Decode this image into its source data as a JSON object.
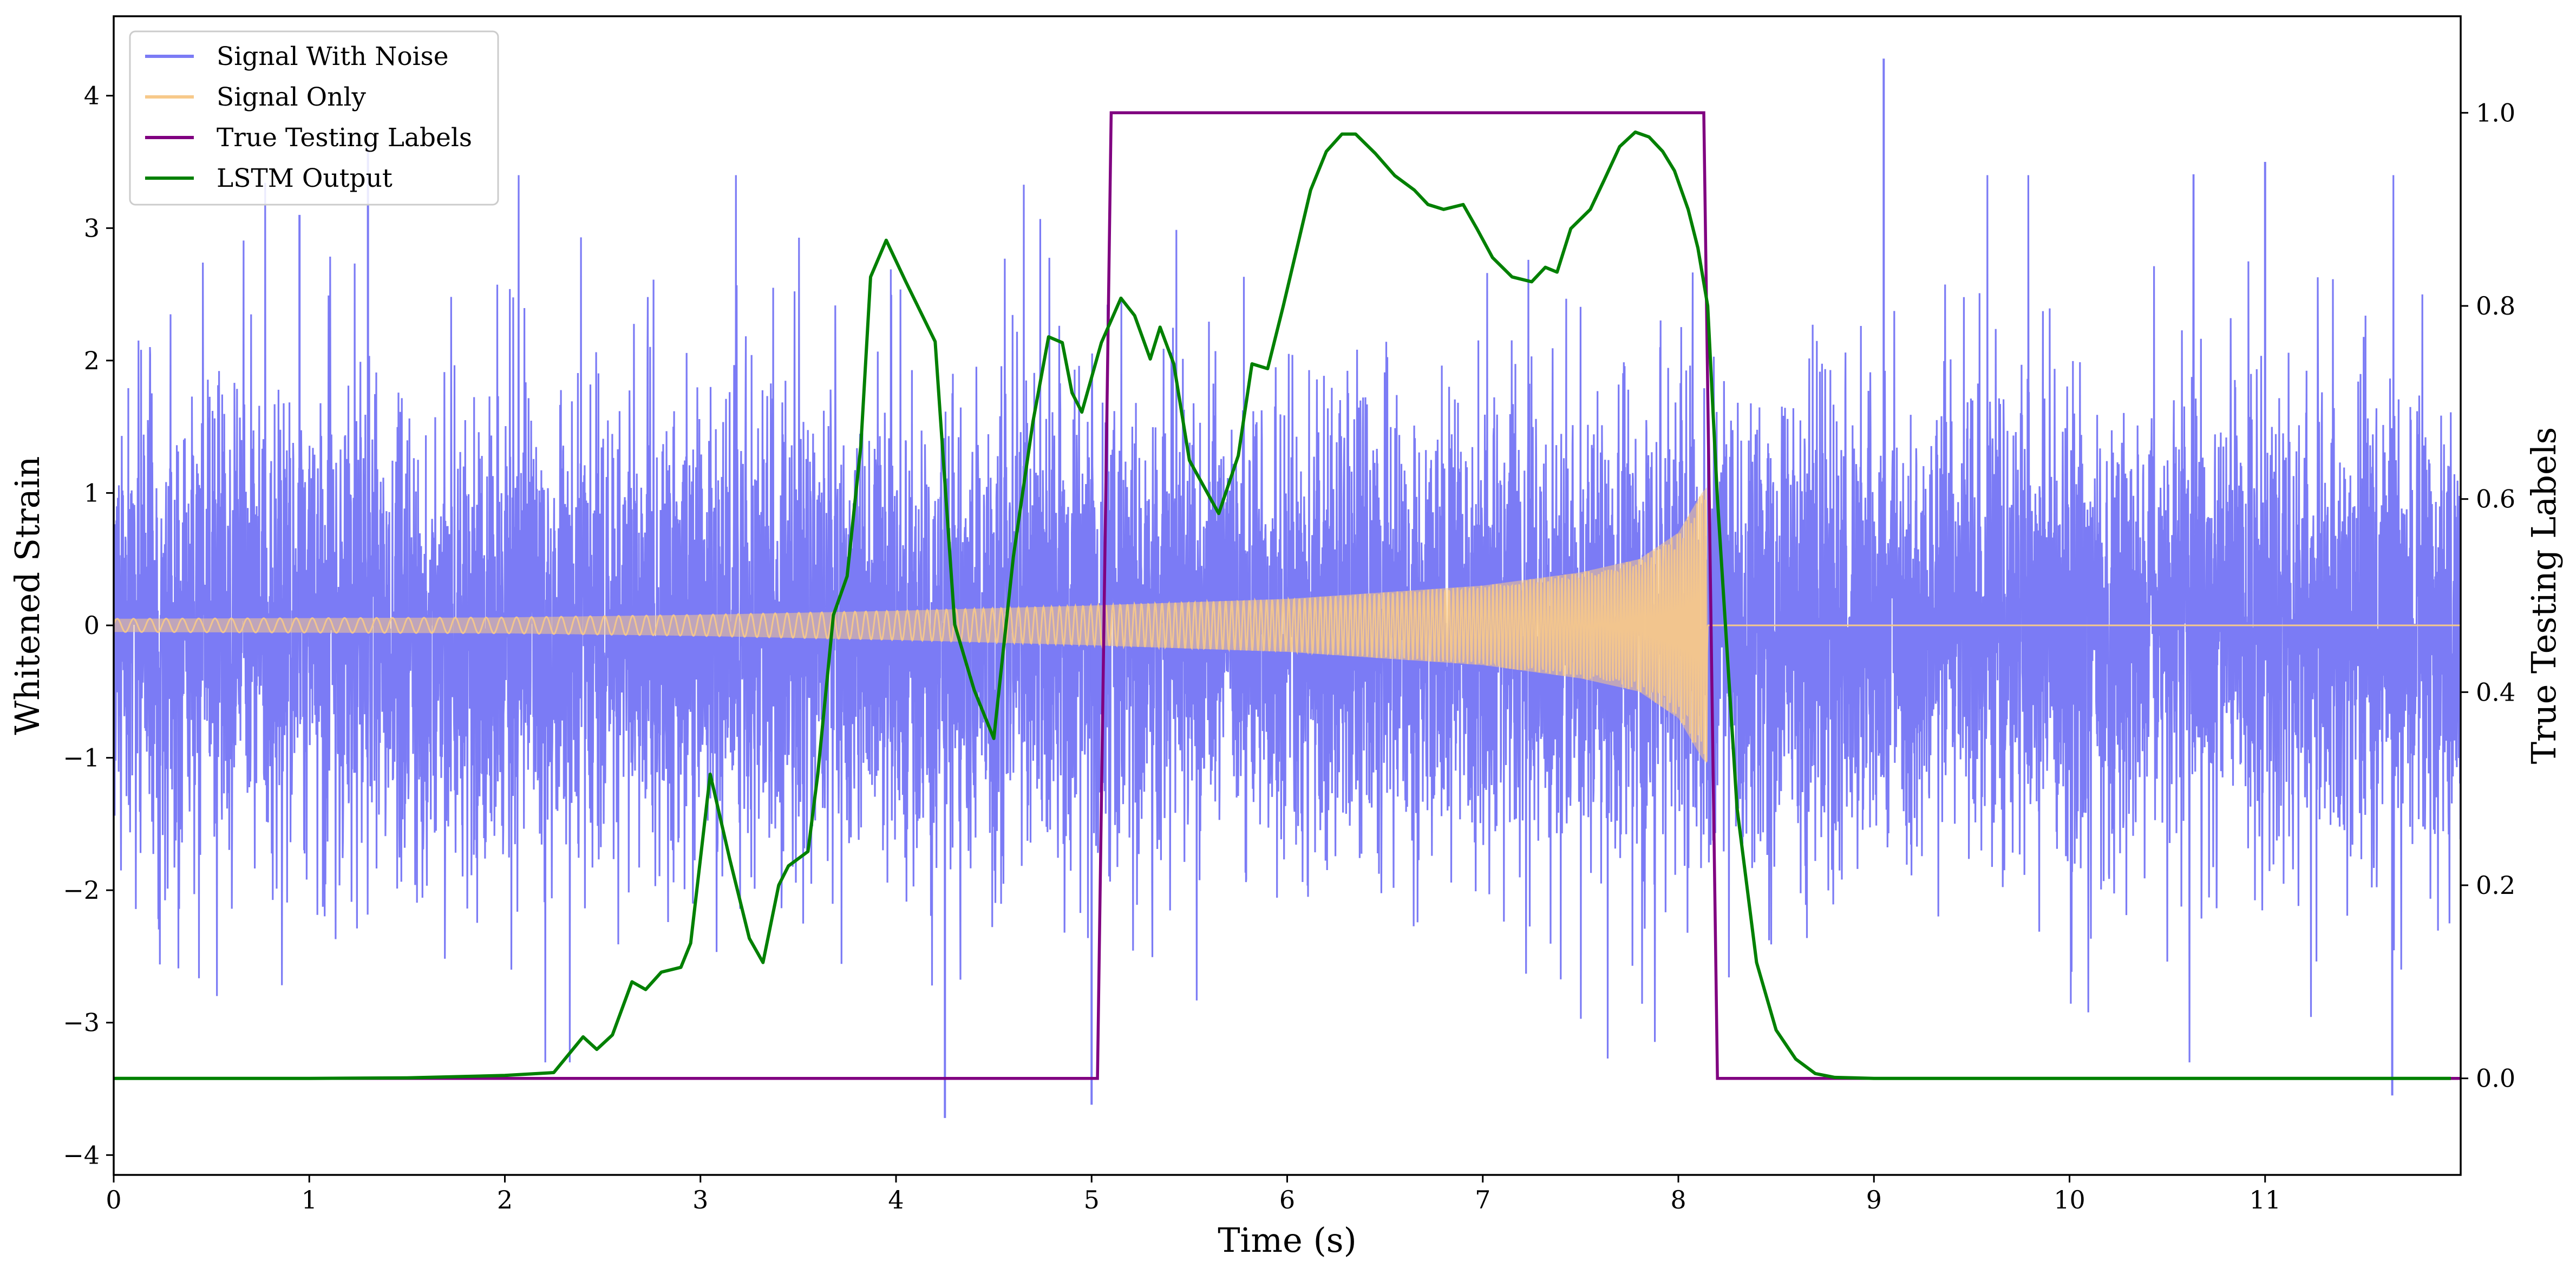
{
  "chart_data": {
    "type": "line",
    "xlabel": "Time (s)",
    "ylabel": "Whitened Strain",
    "ylabel_right": "True Testing Labels",
    "xlim": [
      0,
      12
    ],
    "ylim": [
      -4.15,
      4.6
    ],
    "ylim_right": [
      -0.1,
      1.1
    ],
    "xticks": [
      0,
      1,
      2,
      3,
      4,
      5,
      6,
      7,
      8,
      9,
      10,
      11
    ],
    "yticks": [
      -4,
      -3,
      -2,
      -1,
      0,
      1,
      2,
      3,
      4
    ],
    "yticks_right": [
      0.0,
      0.2,
      0.4,
      0.6,
      0.8,
      1.0
    ],
    "ytick_labels": [
      "−4",
      "−3",
      "−2",
      "−1",
      "0",
      "1",
      "2",
      "3",
      "4"
    ],
    "ytick_labels_right": [
      "0.0",
      "0.2",
      "0.4",
      "0.6",
      "0.8",
      "1.0"
    ],
    "legend_position": "top-left",
    "grid": false,
    "series": [
      {
        "name": "Signal With Noise",
        "axis": "left",
        "color": "#7b7bf5",
        "style": "dense noise, amplitude ~1.1 std, peaks to ±4",
        "noise_std": 1.1,
        "notable_peaks": [
          [
            0.95,
            3.1
          ],
          [
            1.3,
            3.65
          ],
          [
            4.25,
            -3.72
          ],
          [
            5.0,
            -3.62
          ],
          [
            9.05,
            4.28
          ],
          [
            11.65,
            -3.55
          ],
          [
            11.0,
            3.5
          ]
        ]
      },
      {
        "name": "Signal Only",
        "axis": "left",
        "color": "#f7c98a",
        "style": "chirp envelope",
        "envelope": [
          [
            0,
            0.05
          ],
          [
            1,
            0.055
          ],
          [
            2,
            0.06
          ],
          [
            3,
            0.08
          ],
          [
            4,
            0.11
          ],
          [
            5,
            0.15
          ],
          [
            6,
            0.2
          ],
          [
            7,
            0.3
          ],
          [
            7.5,
            0.4
          ],
          [
            7.8,
            0.5
          ],
          [
            8.0,
            0.7
          ],
          [
            8.12,
            1.0
          ],
          [
            8.15,
            1.05
          ],
          [
            8.16,
            0
          ]
        ],
        "end_time": 8.15
      },
      {
        "name": "True Testing Labels",
        "axis": "right",
        "color": "#800080",
        "x": [
          0,
          5.03,
          5.1,
          8.13,
          8.2,
          12
        ],
        "values": [
          0,
          0,
          1,
          1,
          0,
          0
        ]
      },
      {
        "name": "LSTM Output",
        "axis": "right",
        "color": "#008000",
        "x": [
          0,
          1.0,
          1.5,
          2.0,
          2.25,
          2.4,
          2.47,
          2.55,
          2.65,
          2.72,
          2.8,
          2.9,
          2.95,
          3.05,
          3.15,
          3.25,
          3.32,
          3.4,
          3.45,
          3.55,
          3.6,
          3.68,
          3.75,
          3.82,
          3.87,
          3.95,
          4.05,
          4.2,
          4.3,
          4.4,
          4.5,
          4.6,
          4.7,
          4.78,
          4.85,
          4.9,
          4.95,
          5.05,
          5.15,
          5.22,
          5.3,
          5.35,
          5.42,
          5.5,
          5.65,
          5.75,
          5.82,
          5.9,
          5.98,
          6.05,
          6.12,
          6.2,
          6.28,
          6.35,
          6.45,
          6.55,
          6.65,
          6.72,
          6.8,
          6.9,
          6.97,
          7.05,
          7.15,
          7.25,
          7.32,
          7.38,
          7.45,
          7.55,
          7.62,
          7.7,
          7.78,
          7.85,
          7.92,
          7.98,
          8.05,
          8.1,
          8.15,
          8.2,
          8.3,
          8.4,
          8.5,
          8.6,
          8.7,
          8.8,
          9.0,
          10.0,
          11.0,
          11.95
        ],
        "values": [
          0,
          0,
          0.0005,
          0.003,
          0.006,
          0.043,
          0.03,
          0.045,
          0.1,
          0.092,
          0.11,
          0.115,
          0.14,
          0.315,
          0.227,
          0.145,
          0.12,
          0.2,
          0.22,
          0.235,
          0.315,
          0.48,
          0.52,
          0.655,
          0.83,
          0.868,
          0.825,
          0.763,
          0.47,
          0.402,
          0.352,
          0.54,
          0.68,
          0.768,
          0.762,
          0.71,
          0.69,
          0.762,
          0.808,
          0.79,
          0.745,
          0.778,
          0.74,
          0.64,
          0.585,
          0.645,
          0.74,
          0.735,
          0.8,
          0.86,
          0.92,
          0.96,
          0.978,
          0.978,
          0.958,
          0.935,
          0.92,
          0.905,
          0.9,
          0.905,
          0.88,
          0.85,
          0.83,
          0.825,
          0.84,
          0.835,
          0.88,
          0.9,
          0.93,
          0.965,
          0.98,
          0.975,
          0.96,
          0.94,
          0.9,
          0.86,
          0.8,
          0.6,
          0.28,
          0.12,
          0.05,
          0.02,
          0.005,
          0.001,
          0,
          0,
          0,
          0
        ]
      }
    ]
  }
}
